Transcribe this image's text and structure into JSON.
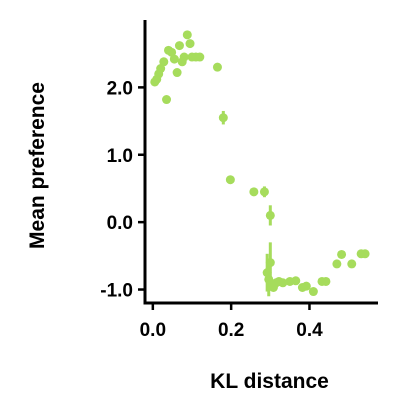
{
  "chart_data": {
    "type": "scatter",
    "title": "",
    "xlabel": "KL distance",
    "ylabel": "Mean preference",
    "xlim": [
      -0.02,
      0.575
    ],
    "ylim": [
      -1.2,
      3.0
    ],
    "xticks": [
      0.0,
      0.2,
      0.4
    ],
    "xtick_labels": [
      "0.0",
      "0.2",
      "0.4"
    ],
    "yticks": [
      -1.0,
      0.0,
      1.0,
      2.0
    ],
    "ytick_labels": [
      "-1.0",
      "0.0",
      "1.0",
      "2.0"
    ],
    "grid": false,
    "legend": "none",
    "marker_color": "#a6dc5c",
    "points": [
      {
        "x": 0.005,
        "y": 2.08
      },
      {
        "x": 0.01,
        "y": 2.12
      },
      {
        "x": 0.015,
        "y": 2.2
      },
      {
        "x": 0.02,
        "y": 2.28
      },
      {
        "x": 0.028,
        "y": 2.38
      },
      {
        "x": 0.035,
        "y": 1.82
      },
      {
        "x": 0.04,
        "y": 2.55
      },
      {
        "x": 0.048,
        "y": 2.52
      },
      {
        "x": 0.055,
        "y": 2.42
      },
      {
        "x": 0.062,
        "y": 2.22
      },
      {
        "x": 0.068,
        "y": 2.62
      },
      {
        "x": 0.075,
        "y": 2.38
      },
      {
        "x": 0.08,
        "y": 2.45
      },
      {
        "x": 0.088,
        "y": 2.78
      },
      {
        "x": 0.095,
        "y": 2.65
      },
      {
        "x": 0.1,
        "y": 2.45
      },
      {
        "x": 0.11,
        "y": 2.45
      },
      {
        "x": 0.12,
        "y": 2.45
      },
      {
        "x": 0.165,
        "y": 2.3
      },
      {
        "x": 0.18,
        "y": 1.55,
        "err": 0.1
      },
      {
        "x": 0.198,
        "y": 0.63
      },
      {
        "x": 0.258,
        "y": 0.45
      },
      {
        "x": 0.285,
        "y": 0.45,
        "err": 0.08
      },
      {
        "x": 0.3,
        "y": 0.1,
        "err": 0.15
      },
      {
        "x": 0.292,
        "y": -0.75,
        "err": 0.28
      },
      {
        "x": 0.296,
        "y": -0.85,
        "err": 0.25
      },
      {
        "x": 0.3,
        "y": -0.6,
        "err": 0.3
      },
      {
        "x": 0.302,
        "y": -0.92
      },
      {
        "x": 0.308,
        "y": -0.97
      },
      {
        "x": 0.315,
        "y": -0.9
      },
      {
        "x": 0.322,
        "y": -0.88
      },
      {
        "x": 0.332,
        "y": -0.9
      },
      {
        "x": 0.35,
        "y": -0.88
      },
      {
        "x": 0.365,
        "y": -0.87
      },
      {
        "x": 0.382,
        "y": -0.97
      },
      {
        "x": 0.392,
        "y": -0.95
      },
      {
        "x": 0.41,
        "y": -1.03
      },
      {
        "x": 0.432,
        "y": -0.88
      },
      {
        "x": 0.442,
        "y": -0.88
      },
      {
        "x": 0.47,
        "y": -0.62
      },
      {
        "x": 0.482,
        "y": -0.48
      },
      {
        "x": 0.508,
        "y": -0.62
      },
      {
        "x": 0.532,
        "y": -0.47
      },
      {
        "x": 0.542,
        "y": -0.47
      }
    ]
  }
}
